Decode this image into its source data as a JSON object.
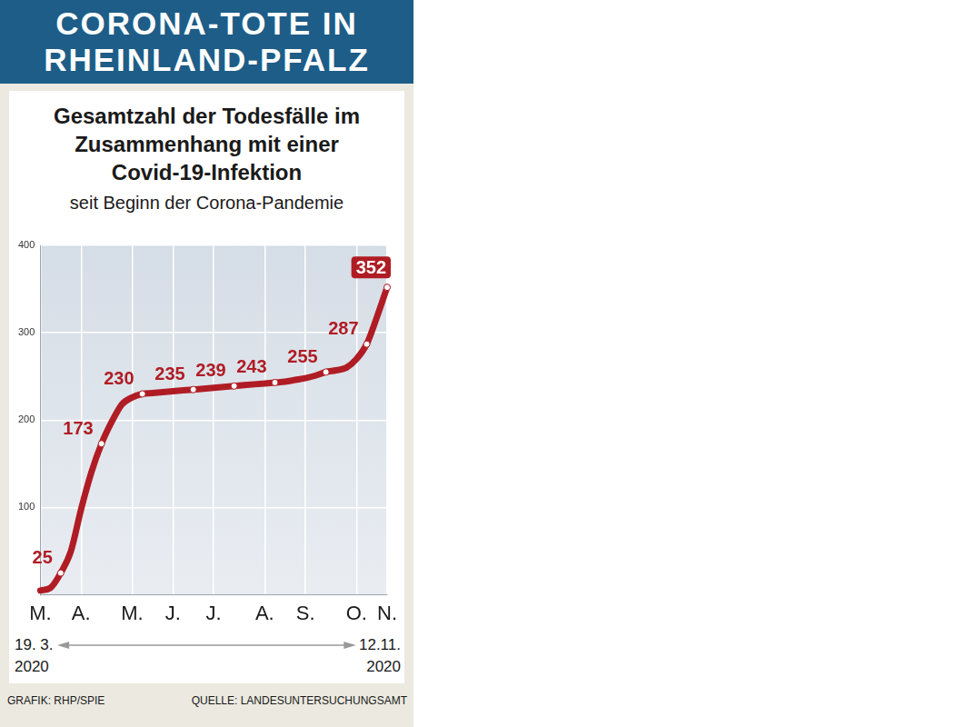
{
  "header": [
    "CORONA-TOTE IN",
    "RHEINLAND-PFALZ"
  ],
  "footer": {
    "left": "GRAFIK: RHP/SPIE",
    "right": "QUELLE: LANDESUNTERSUCHUNGSAMT"
  },
  "chart_data": {
    "type": "line",
    "title": [
      "Gesamtzahl der Todesfälle im",
      "Zusammenhang mit einer",
      "Covid-19-Infektion"
    ],
    "subtitle": "seit Beginn der Corona-Pandemie",
    "categories": [
      "M.",
      null,
      null,
      null,
      "A.",
      null,
      null,
      null,
      null,
      "M.",
      null,
      null,
      null,
      "J.",
      null,
      null,
      null,
      "J.",
      null,
      null,
      null,
      null,
      "A.",
      null,
      null,
      null,
      "S.",
      null,
      null,
      null,
      null,
      "O.",
      null,
      null,
      "N."
    ],
    "values": [
      5,
      8,
      25,
      50,
      98,
      140,
      173,
      198,
      218,
      226,
      230,
      231,
      232,
      233,
      234,
      235,
      236,
      237,
      238,
      239,
      240,
      241,
      242,
      243,
      244,
      246,
      248,
      251,
      255,
      257,
      260,
      270,
      287,
      318,
      352
    ],
    "value_labels": [
      null,
      null,
      "25",
      null,
      null,
      null,
      "173",
      null,
      null,
      null,
      "230",
      null,
      null,
      null,
      null,
      "235",
      null,
      null,
      null,
      "239",
      null,
      null,
      null,
      "243",
      null,
      null,
      null,
      null,
      "255",
      null,
      null,
      null,
      "287",
      null,
      "352"
    ],
    "color": "#b01c24",
    "ylim": [
      0,
      400
    ],
    "yticks": [
      100,
      200,
      300,
      400
    ],
    "grid": true,
    "data_labels": true,
    "marker": "circle",
    "x_range": {
      "start": "19. 3.",
      "start_year": "2020",
      "end": "12.11.",
      "end_year": "2020"
    }
  }
}
